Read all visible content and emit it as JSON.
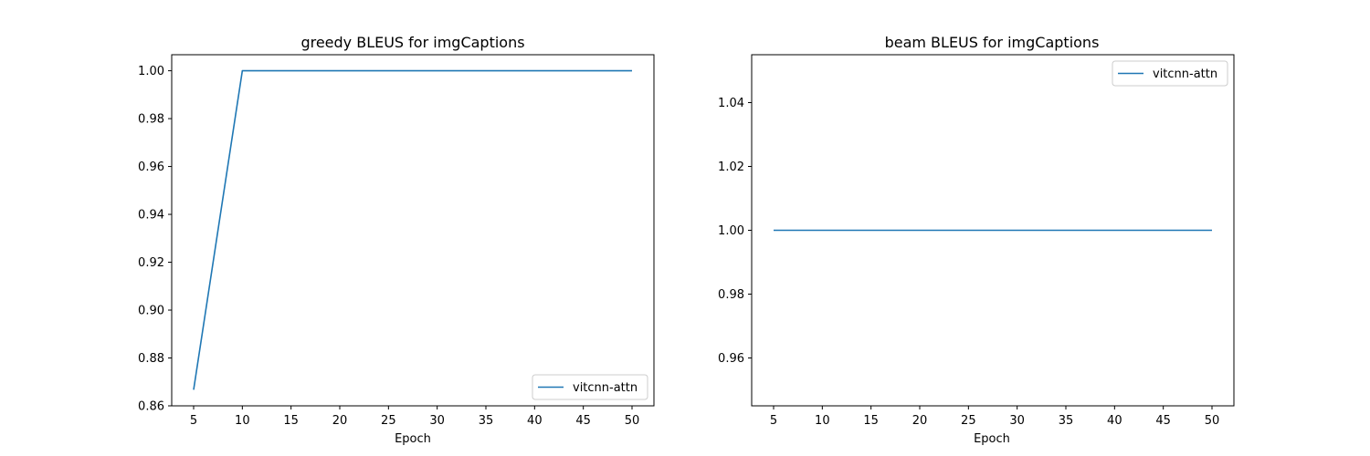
{
  "colors": {
    "series": "#1f77b4",
    "axis": "#000000",
    "legend_border": "#cccccc"
  },
  "chart_data": [
    {
      "type": "line",
      "title": "greedy BLEUS for imgCaptions",
      "xlabel": "Epoch",
      "ylabel": "",
      "xlim": [
        2.75,
        52.25
      ],
      "ylim": [
        0.86,
        1.0067
      ],
      "xticks": [
        5,
        10,
        15,
        20,
        25,
        30,
        35,
        40,
        45,
        50
      ],
      "xtick_labels": [
        "5",
        "10",
        "15",
        "20",
        "25",
        "30",
        "35",
        "40",
        "45",
        "50"
      ],
      "yticks": [
        0.86,
        0.88,
        0.9,
        0.92,
        0.94,
        0.96,
        0.98,
        1.0
      ],
      "ytick_labels": [
        "0.86",
        "0.88",
        "0.90",
        "0.92",
        "0.94",
        "0.96",
        "0.98",
        "1.00"
      ],
      "legend_position": "lower-right",
      "grid": false,
      "series": [
        {
          "name": "vitcnn-attn",
          "x": [
            5,
            10,
            15,
            20,
            25,
            30,
            35,
            40,
            45,
            50
          ],
          "y": [
            0.8667,
            1.0,
            1.0,
            1.0,
            1.0,
            1.0,
            1.0,
            1.0,
            1.0,
            1.0
          ]
        }
      ]
    },
    {
      "type": "line",
      "title": "beam BLEUS for imgCaptions",
      "xlabel": "Epoch",
      "ylabel": "",
      "xlim": [
        2.75,
        52.25
      ],
      "ylim": [
        0.945,
        1.055
      ],
      "xticks": [
        5,
        10,
        15,
        20,
        25,
        30,
        35,
        40,
        45,
        50
      ],
      "xtick_labels": [
        "5",
        "10",
        "15",
        "20",
        "25",
        "30",
        "35",
        "40",
        "45",
        "50"
      ],
      "yticks": [
        0.96,
        0.98,
        1.0,
        1.02,
        1.04
      ],
      "ytick_labels": [
        "0.96",
        "0.98",
        "1.00",
        "1.02",
        "1.04"
      ],
      "legend_position": "upper-right",
      "grid": false,
      "series": [
        {
          "name": "vitcnn-attn",
          "x": [
            5,
            10,
            15,
            20,
            25,
            30,
            35,
            40,
            45,
            50
          ],
          "y": [
            1.0,
            1.0,
            1.0,
            1.0,
            1.0,
            1.0,
            1.0,
            1.0,
            1.0,
            1.0
          ]
        }
      ]
    }
  ]
}
